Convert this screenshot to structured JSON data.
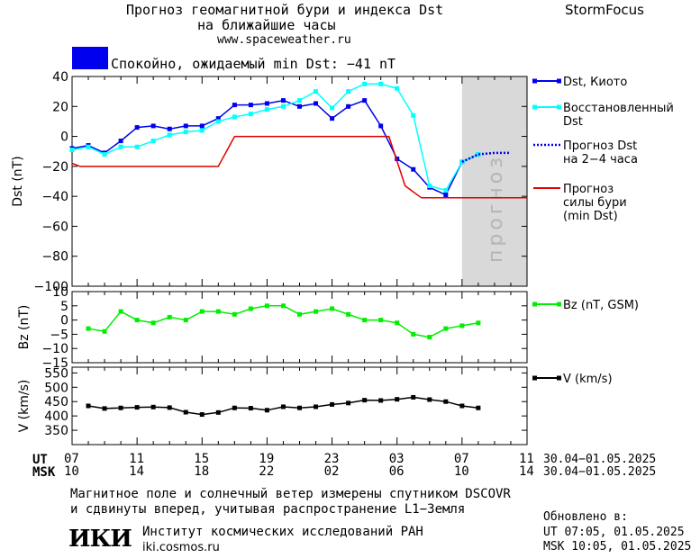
{
  "header": {
    "title_line1": "Прогноз геомагнитной бури и индекса Dst",
    "title_line2": "на ближайшие часы",
    "url": "www.spaceweather.ru",
    "brand": "StormFocus"
  },
  "status": {
    "text": "Спокойно, ожидаемый min Dst: −41 nT",
    "color": "#0000ee"
  },
  "forecast_zone_label": "прогноз",
  "time_axis": {
    "ut_label": "UT",
    "msk_label": "MSK",
    "ut_ticks": [
      "07",
      "11",
      "15",
      "19",
      "23",
      "03",
      "07",
      "11"
    ],
    "msk_ticks": [
      "10",
      "14",
      "18",
      "22",
      "02",
      "06",
      "10",
      "14"
    ],
    "date_range_ut": "30.04−01.05.2025",
    "date_range_msk": "30.04−01.05.2025"
  },
  "footer": {
    "note_line1": "Магнитное поле и солнечный ветер измерены спутником DSCOVR",
    "note_line2": "и сдвинуты вперед, учитывая распространение L1−Земля",
    "logo_text": "ИКИ",
    "institute": "Институт космических исследований РАН",
    "institute_url": "iki.cosmos.ru",
    "updated_label": "Обновлено в:",
    "updated_ut": "UT   07:05, 01.05.2025",
    "updated_msk": "MSK 10:05, 01.05.2025"
  },
  "chart_data": [
    {
      "type": "line",
      "x_unit": "hours (UT 07 = 0, forecast zone from 24 to 28)",
      "ylabel": "Dst (nT)",
      "ylim": [
        -100,
        40
      ],
      "yticks": [
        40,
        20,
        0,
        -20,
        -40,
        -60,
        -80,
        -100
      ],
      "xlim": [
        0,
        28
      ],
      "forecast_zone": [
        24,
        28
      ],
      "series": [
        {
          "name": "Dst, Киото",
          "color": "#0000ee",
          "style": "solid-square",
          "points": [
            [
              0,
              -8
            ],
            [
              1,
              -6
            ],
            [
              2,
              -11
            ],
            [
              3,
              -3
            ],
            [
              4,
              6
            ],
            [
              5,
              7
            ],
            [
              6,
              5
            ],
            [
              7,
              7
            ],
            [
              8,
              7
            ],
            [
              9,
              12
            ],
            [
              10,
              21
            ],
            [
              11,
              21
            ],
            [
              12,
              22
            ],
            [
              13,
              24
            ],
            [
              14,
              20
            ],
            [
              15,
              22
            ],
            [
              16,
              12
            ],
            [
              17,
              20
            ],
            [
              18,
              24
            ],
            [
              19,
              7
            ],
            [
              20,
              -15
            ],
            [
              21,
              -22
            ],
            [
              22,
              -34
            ],
            [
              23,
              -39
            ],
            [
              24,
              -17
            ],
            [
              25,
              -12
            ]
          ]
        },
        {
          "name": "Восстановленный Dst",
          "color": "#00ffff",
          "style": "solid-square",
          "points": [
            [
              0,
              -9
            ],
            [
              1,
              -7
            ],
            [
              2,
              -12
            ],
            [
              3,
              -7
            ],
            [
              4,
              -7
            ],
            [
              5,
              -3
            ],
            [
              6,
              1
            ],
            [
              7,
              3
            ],
            [
              8,
              4
            ],
            [
              9,
              10
            ],
            [
              10,
              13
            ],
            [
              11,
              15
            ],
            [
              12,
              18
            ],
            [
              13,
              20
            ],
            [
              14,
              24
            ],
            [
              15,
              30
            ],
            [
              16,
              19
            ],
            [
              17,
              30
            ],
            [
              18,
              35
            ],
            [
              19,
              35
            ],
            [
              20,
              32
            ],
            [
              21,
              14
            ],
            [
              22,
              -33
            ],
            [
              23,
              -36
            ],
            [
              24,
              -17
            ],
            [
              25,
              -12
            ]
          ]
        },
        {
          "name": "Прогноз Dst на 2−4 часа",
          "color": "#0000ee",
          "style": "dotted",
          "points": [
            [
              24,
              -17
            ],
            [
              25,
              -12
            ],
            [
              26,
              -11
            ],
            [
              27,
              -11
            ]
          ]
        },
        {
          "name": "Прогноз силы бури (min Dst)",
          "color": "#e00000",
          "style": "solid",
          "points": [
            [
              0,
              -18
            ],
            [
              0.5,
              -20
            ],
            [
              9,
              -20
            ],
            [
              10,
              0
            ],
            [
              19.5,
              0
            ],
            [
              20.5,
              -33
            ],
            [
              21.5,
              -41
            ],
            [
              28,
              -41
            ]
          ]
        }
      ]
    },
    {
      "type": "line",
      "ylabel": "Bz (nT)",
      "ylim": [
        -15,
        10
      ],
      "yticks": [
        10,
        5,
        0,
        -5,
        -10,
        -15
      ],
      "series": [
        {
          "name": "Bz (nT, GSM)",
          "color": "#00ee00",
          "points": [
            [
              1,
              -3
            ],
            [
              2,
              -4
            ],
            [
              3,
              3
            ],
            [
              4,
              0
            ],
            [
              5,
              -1
            ],
            [
              6,
              1
            ],
            [
              7,
              0
            ],
            [
              8,
              3
            ],
            [
              9,
              3
            ],
            [
              10,
              2
            ],
            [
              11,
              4
            ],
            [
              12,
              5
            ],
            [
              13,
              5
            ],
            [
              14,
              2
            ],
            [
              15,
              3
            ],
            [
              16,
              4
            ],
            [
              17,
              2
            ],
            [
              18,
              0
            ],
            [
              19,
              0
            ],
            [
              20,
              -1
            ],
            [
              21,
              -5
            ],
            [
              22,
              -6
            ],
            [
              23,
              -3
            ],
            [
              24,
              -2
            ],
            [
              25,
              -1
            ]
          ]
        }
      ]
    },
    {
      "type": "line",
      "ylabel": "V (km/s)",
      "ylim": [
        300,
        570
      ],
      "yticks": [
        550,
        500,
        450,
        400,
        350
      ],
      "series": [
        {
          "name": "V (km/s)",
          "color": "#000000",
          "points": [
            [
              1,
              435
            ],
            [
              2,
              426
            ],
            [
              3,
              428
            ],
            [
              4,
              430
            ],
            [
              5,
              431
            ],
            [
              6,
              429
            ],
            [
              7,
              413
            ],
            [
              8,
              405
            ],
            [
              9,
              412
            ],
            [
              10,
              428
            ],
            [
              11,
              427
            ],
            [
              12,
              420
            ],
            [
              13,
              432
            ],
            [
              14,
              428
            ],
            [
              15,
              432
            ],
            [
              16,
              440
            ],
            [
              17,
              445
            ],
            [
              18,
              455
            ],
            [
              19,
              454
            ],
            [
              20,
              458
            ],
            [
              21,
              465
            ],
            [
              22,
              457
            ],
            [
              23,
              450
            ],
            [
              24,
              435
            ],
            [
              25,
              428
            ]
          ]
        }
      ]
    }
  ]
}
